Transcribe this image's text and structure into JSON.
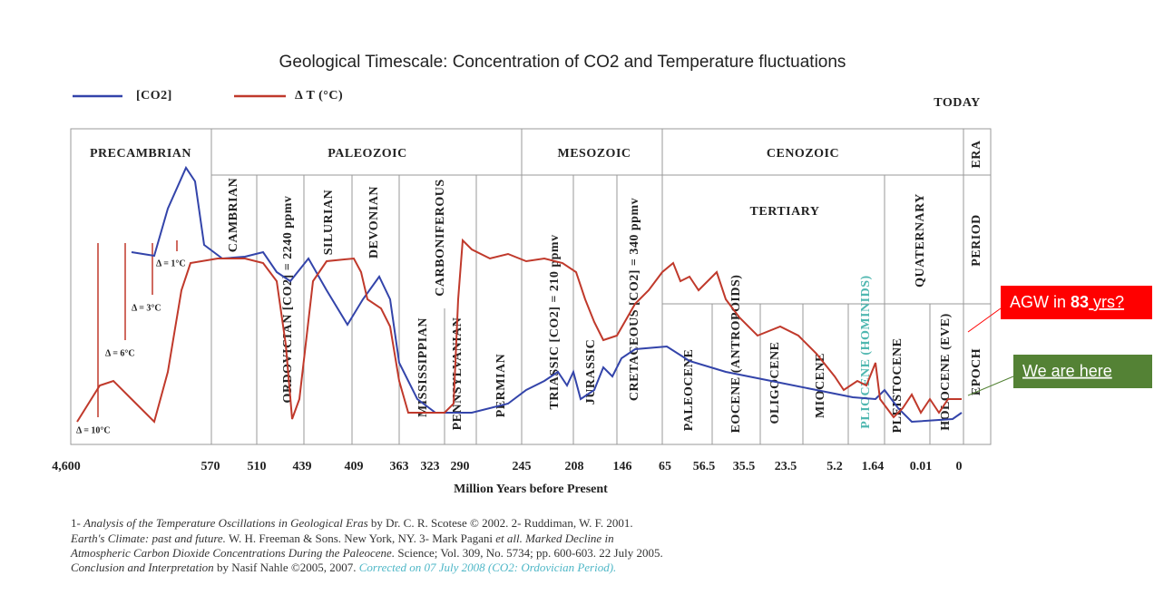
{
  "header": {
    "title": "Geological Timescale: Concentration of CO2 and Temperature fluctuations"
  },
  "legend": [
    "[CO2]",
    "Δ T (°C)"
  ],
  "today": "TODAY",
  "rows": [
    "ERA",
    "PERIOD",
    "EPOCH"
  ],
  "eras": [
    "PRECAMBRIAN",
    "PALEOZOIC",
    "MESOZOIC",
    "CENOZOIC"
  ],
  "periods": [
    "CAMBRIAN",
    "ORDOVICIAN [CO2] = 2240 ppmv",
    "SILURIAN",
    "DEVONIAN",
    "CARBONIFEROUS",
    "MISSISSIPPIAN",
    "PENNSYLVANIAN",
    "PERMIAN",
    "TRIASSIC [CO2] = 210 ppmv",
    "JURASSIC",
    "CRETACEOUS [CO2] = 340 ppmv",
    "TERTIARY",
    "QUATERNARY"
  ],
  "epochs": [
    "PALEOCENE",
    "EOCENE (ANTROPOIDS)",
    "OLIGOCENE",
    "MIOCENE",
    "PLIOCENE (HOMINIDS)",
    "PLEISTOCENE",
    "HOLOCENE (EVE)"
  ],
  "deltas": [
    "Δ = 1°C",
    "Δ = 3°C",
    "Δ = 6°C",
    "Δ = 10°C"
  ],
  "x_ticks": [
    "4,600",
    "570",
    "510",
    "439",
    "409",
    "363",
    "323",
    "290",
    "245",
    "208",
    "146",
    "65",
    "56.5",
    "35.5",
    "23.5",
    "5.2",
    "1.64",
    "0.01",
    "0"
  ],
  "x_label": "Million Years before Present",
  "footnote": [
    [
      "1- ",
      "Analysis of the Temperature Oscillations in Geological Eras",
      " by Dr. C. R. Scotese © 2002. 2- Ruddiman, W. F. 2001."
    ],
    [
      "Earth's Climate: past and future.",
      " W. H. Freeman & Sons. New York, NY. 3- Mark Pagani ",
      "et all. Marked Decline in"
    ],
    [
      "Atmospheric Carbon Dioxide Concentrations During the Paleocene.",
      " Science; Vol. 309, No. 5734; pp. 600-603. 22 July 2005."
    ],
    [
      "Conclusion and Interpretation",
      " by Nasif Nahle ©2005, 2007. ",
      "Corrected on 07 July 2008 (CO2: Ordovician Period)."
    ]
  ],
  "callouts": {
    "agw": [
      "AGW in ",
      "83",
      " yrs?"
    ],
    "here": "We are here"
  }
}
